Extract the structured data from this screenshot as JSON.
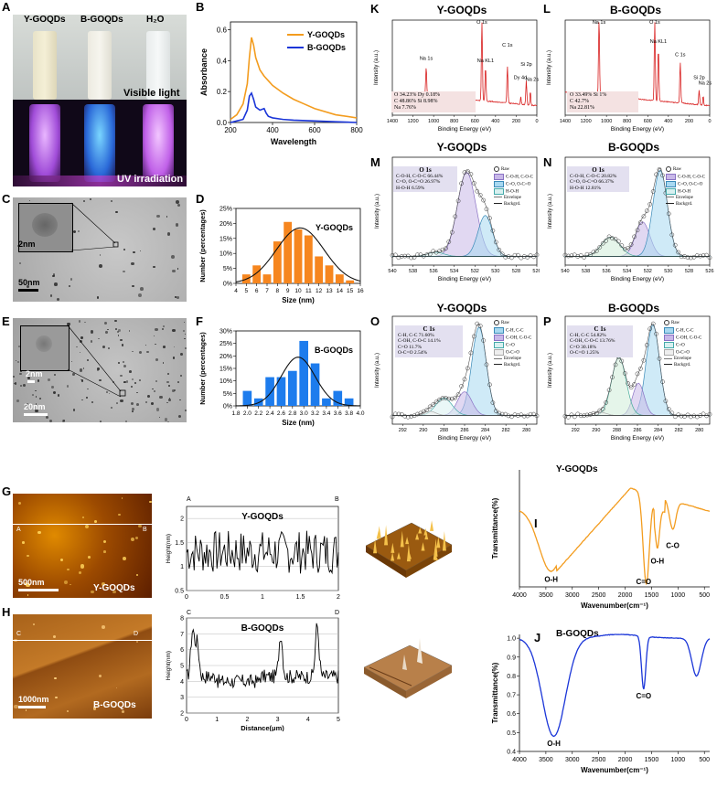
{
  "panels": {
    "A": {
      "label": "A",
      "vials": [
        "Y-GOQDs",
        "B-GOQDs",
        "H₂O"
      ],
      "visible": "Visible light",
      "uv": "UV irradiation"
    },
    "B": {
      "label": "B"
    },
    "C": {
      "label": "C",
      "inset_scale": "2nm",
      "scale": "50nm"
    },
    "D": {
      "label": "D"
    },
    "E": {
      "label": "E",
      "inset_scale": "2nm",
      "scale": "20nm"
    },
    "F": {
      "label": "F"
    },
    "G": {
      "label": "G",
      "img_label": "Y-GOQDs",
      "scale": "500nm",
      "A": "A",
      "B": "B"
    },
    "H": {
      "label": "H",
      "img_label": "B-GOQDs",
      "scale": "1000nm",
      "C": "C",
      "D": "D"
    },
    "I": {
      "label": "I"
    },
    "J": {
      "label": "J"
    },
    "K": {
      "label": "K",
      "title": "Y-GOQDs"
    },
    "L": {
      "label": "L",
      "title": "B-GOQDs"
    },
    "M": {
      "label": "M",
      "title": "Y-GOQDs"
    },
    "N": {
      "label": "N",
      "title": "B-GOQDs"
    },
    "O": {
      "label": "O",
      "title": "Y-GOQDs"
    },
    "P": {
      "label": "P",
      "title": "B-GOQDs"
    }
  },
  "xps_survey": {
    "ylabel": "Intensity (a.u.)",
    "xlabel": "Binding Energy (eV)",
    "ticks": [
      "1400",
      "1200",
      "1000",
      "800",
      "600",
      "400",
      "200",
      "0"
    ],
    "K_peaks": [
      "Na 1s",
      "O 1s",
      "Na KL1",
      "C 1s",
      "Si 2p",
      "Dy 4d",
      "Na 2s"
    ],
    "L_peaks": [
      "Na 1s",
      "O 1s",
      "Na KL1",
      "C 1s",
      "Si 2p",
      "Na 2s"
    ],
    "K_stats": [
      "O   34.23%   Dy   0.18%",
      "C   48.86%   Si   8.98%",
      "Na  7.76%"
    ],
    "L_stats": [
      "O   33.49%   Si   1%",
      "C   42.7%",
      "Na  22.81%"
    ]
  },
  "xps_o1s": {
    "ylabel": "Intensity (a.u.)",
    "xlabel": "Binding Energy (eV)",
    "ticks": [
      "540",
      "538",
      "536",
      "534",
      "532",
      "530",
      "528",
      "526"
    ],
    "M_box": [
      "O 1s",
      "C-O-H, C-O-C  66.44%",
      "C=O, O-C=O  26.97%",
      "H-O-H  6.59%"
    ],
    "N_box": [
      "O 1s",
      "C-O-H, C-O-C  20.82%",
      "C=O, O-C=O  66.37%",
      "H-O-H  12.81%"
    ],
    "legend": [
      "Raw",
      "C-O-H, C-O-C",
      "C=O, O-C=O",
      "H-O-H",
      "Envelope",
      "Backgrd."
    ]
  },
  "xps_c1s": {
    "ylabel": "Intensity (a.u.)",
    "xlabel": "Binding Energy (eV)",
    "ticks": [
      "292",
      "290",
      "288",
      "286",
      "284",
      "282",
      "280"
    ],
    "P_ticks": [
      "292",
      "290",
      "288",
      "286",
      "284",
      "282",
      "280"
    ],
    "O_box": [
      "C 1s",
      "C-H, C-C  71.60%",
      "C-OH, C-O-C  14.1%",
      "C=O  11.7%",
      "O-C=O  2.54%"
    ],
    "P_box": [
      "C 1s",
      "C-H, C-C  54.82%",
      "C-OH, C-O-C  13.76%",
      "C=O  30.18%",
      "O-C=O  1.25%"
    ],
    "legend": [
      "Raw",
      "C-H, C-C",
      "C-OH, C-O-C",
      "C=O",
      "O-C=O",
      "Envelope",
      "Backgrd."
    ]
  },
  "chart_data": [
    {
      "id": "B",
      "type": "line",
      "xlabel": "Wavelength",
      "ylabel": "Absorbance",
      "xlim": [
        200,
        800
      ],
      "ylim": [
        0,
        0.65
      ],
      "xticks": [
        "200",
        "400",
        "600",
        "800"
      ],
      "yticks": [
        "0.0",
        "0.2",
        "0.4",
        "0.6"
      ],
      "series": [
        {
          "name": "Y-GOQDs",
          "color": "#f39c1e",
          "x": [
            200,
            230,
            260,
            280,
            290,
            300,
            310,
            320,
            340,
            360,
            380,
            400,
            450,
            500,
            550,
            600,
            700,
            800
          ],
          "y": [
            0.02,
            0.05,
            0.12,
            0.25,
            0.42,
            0.55,
            0.5,
            0.42,
            0.34,
            0.3,
            0.27,
            0.24,
            0.19,
            0.15,
            0.12,
            0.09,
            0.05,
            0.03
          ]
        },
        {
          "name": "B-GOQDs",
          "color": "#1a35d8",
          "x": [
            200,
            230,
            260,
            280,
            290,
            300,
            310,
            320,
            340,
            360,
            370,
            380,
            400,
            450,
            500,
            600,
            700,
            800
          ],
          "y": [
            0.0,
            0.01,
            0.02,
            0.08,
            0.17,
            0.19,
            0.15,
            0.1,
            0.08,
            0.09,
            0.06,
            0.04,
            0.03,
            0.02,
            0.015,
            0.01,
            0.005,
            0.0
          ]
        }
      ]
    },
    {
      "id": "D",
      "type": "bar",
      "title": "Y-GOQDs",
      "xlabel": "Size (nm)",
      "ylabel": "Number (percentages)",
      "xticks": [
        "4",
        "5",
        "6",
        "7",
        "8",
        "9",
        "10",
        "11",
        "12",
        "13",
        "14",
        "15",
        "16"
      ],
      "yticks": [
        "0%",
        "5%",
        "10%",
        "15%",
        "20%",
        "25%"
      ],
      "ylim": [
        0,
        25
      ],
      "color": "#f6861f",
      "x": [
        5,
        6,
        7,
        8,
        9,
        10,
        11,
        12,
        13,
        14,
        15
      ],
      "values": [
        3,
        6,
        3,
        14,
        20.5,
        18,
        16,
        9,
        6,
        3,
        1
      ],
      "fit": {
        "mean": 10.2,
        "sd": 2.3,
        "peak": 18.5
      }
    },
    {
      "id": "F",
      "type": "bar",
      "title": "B-GOQDs",
      "xlabel": "Size (nm)",
      "ylabel": "Number (percentages)",
      "xticks": [
        "1.8",
        "2.0",
        "2.2",
        "2.4",
        "2.6",
        "2.8",
        "3.0",
        "3.2",
        "3.4",
        "3.6",
        "3.8",
        "4.0"
      ],
      "yticks": [
        "0%",
        "5%",
        "10%",
        "15%",
        "20%",
        "25%",
        "30%"
      ],
      "ylim": [
        0,
        30
      ],
      "color": "#1d7ced",
      "x": [
        2.0,
        2.2,
        2.4,
        2.6,
        2.8,
        3.0,
        3.2,
        3.4,
        3.6,
        3.8
      ],
      "values": [
        6,
        3,
        11.5,
        11.5,
        14,
        26,
        17,
        3,
        6,
        3
      ],
      "fit": {
        "mean": 2.9,
        "sd": 0.3,
        "peak": 19.5
      }
    },
    {
      "id": "G",
      "type": "line",
      "title": "Y-GOQDs",
      "xlabel": "",
      "ylabel": "Height(nm)",
      "xlim": [
        0,
        2
      ],
      "ylim": [
        0.5,
        2.25
      ],
      "xticks": [
        "0",
        "0.5",
        "1",
        "1.5",
        "2"
      ],
      "yticks": [
        "0.5",
        "1",
        "1.5",
        "2"
      ],
      "seed": 7,
      "base": 1.3,
      "amp": 0.45,
      "n": 120
    },
    {
      "id": "H",
      "type": "line",
      "title": "B-GOQDs",
      "xlabel": "Distance(μm)",
      "ylabel": "Height(nm)",
      "xlim": [
        0,
        5
      ],
      "ylim": [
        2,
        8
      ],
      "xticks": [
        "0",
        "1",
        "2",
        "3",
        "4",
        "5"
      ],
      "yticks": [
        "2",
        "3",
        "4",
        "5",
        "6",
        "7",
        "8"
      ],
      "peaks": [
        [
          0.2,
          7.2
        ],
        [
          0.35,
          6.4
        ],
        [
          3.1,
          7.0
        ],
        [
          4.3,
          7.5
        ]
      ],
      "base": 4.3,
      "n": 160
    },
    {
      "id": "I",
      "type": "line",
      "title": "Y-GOQDs",
      "xlabel": "Wavenumber(cm⁻¹)",
      "ylabel": "Transmittance(%)",
      "xticks": [
        "4000",
        "3500",
        "3000",
        "2500",
        "2000",
        "1500",
        "1000",
        "500"
      ],
      "annotations": [
        "O-H",
        "C=O",
        "O-H",
        "C-O"
      ],
      "color": "#f39c1e"
    },
    {
      "id": "J",
      "type": "line",
      "title": "B-GOQDs",
      "xlabel": "Wavenumber(cm⁻¹)",
      "ylabel": "Transmittance(%)",
      "xticks": [
        "4000",
        "3500",
        "3000",
        "2500",
        "2000",
        "1500",
        "1000",
        "500"
      ],
      "yticks": [
        "0.4",
        "0.5",
        "0.6",
        "0.7",
        "0.8",
        "0.9",
        "1.0"
      ],
      "annotations": [
        "O-H",
        "C=O"
      ],
      "color": "#1a35d8"
    }
  ]
}
